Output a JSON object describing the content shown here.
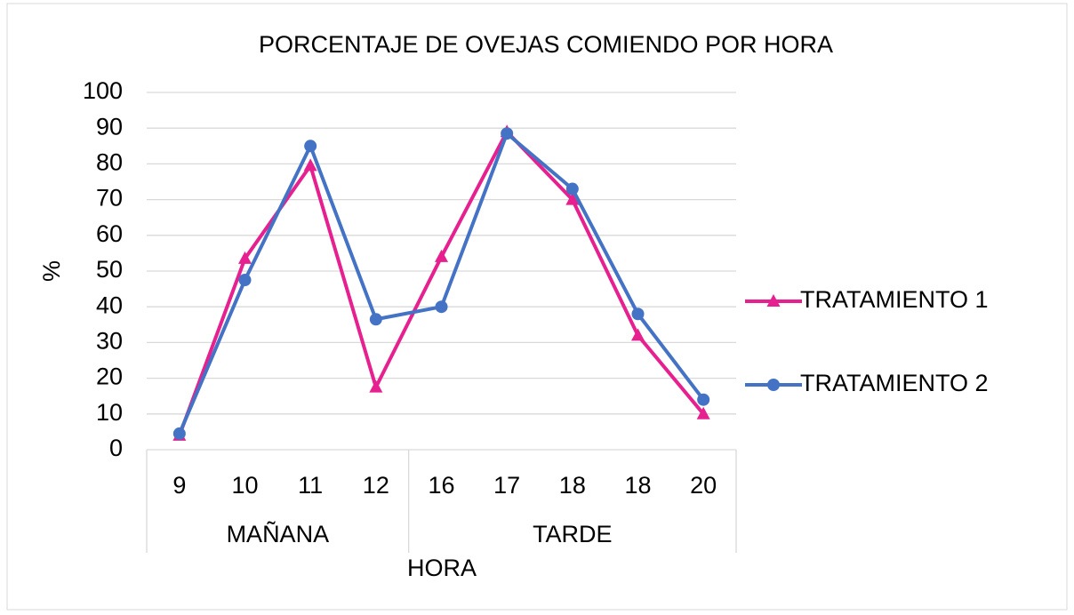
{
  "chart_data": {
    "type": "line",
    "title": "PORCENTAJE DE OVEJAS COMIENDO POR HORA",
    "x_label": "HORA",
    "y_label": "%",
    "groups": [
      {
        "label": "MAÑANA",
        "categories": [
          "9",
          "10",
          "11",
          "12"
        ]
      },
      {
        "label": "TARDE",
        "categories": [
          "16",
          "17",
          "18",
          "18",
          "20"
        ]
      }
    ],
    "series": [
      {
        "name": "TRATAMIENTO 1",
        "color": "#e6208f",
        "marker": "triangle",
        "values": [
          4,
          53.5,
          79.5,
          17.5,
          54,
          89,
          70,
          32,
          10
        ]
      },
      {
        "name": "TRATAMIENTO 2",
        "color": "#4472c4",
        "marker": "circle",
        "values": [
          4.5,
          47.5,
          85,
          36.5,
          40,
          88.5,
          73,
          38,
          14
        ]
      }
    ],
    "ylim": [
      0,
      100
    ],
    "yticks": [
      0,
      10,
      20,
      30,
      40,
      50,
      60,
      70,
      80,
      90,
      100
    ],
    "grid": true,
    "legend": "right"
  }
}
